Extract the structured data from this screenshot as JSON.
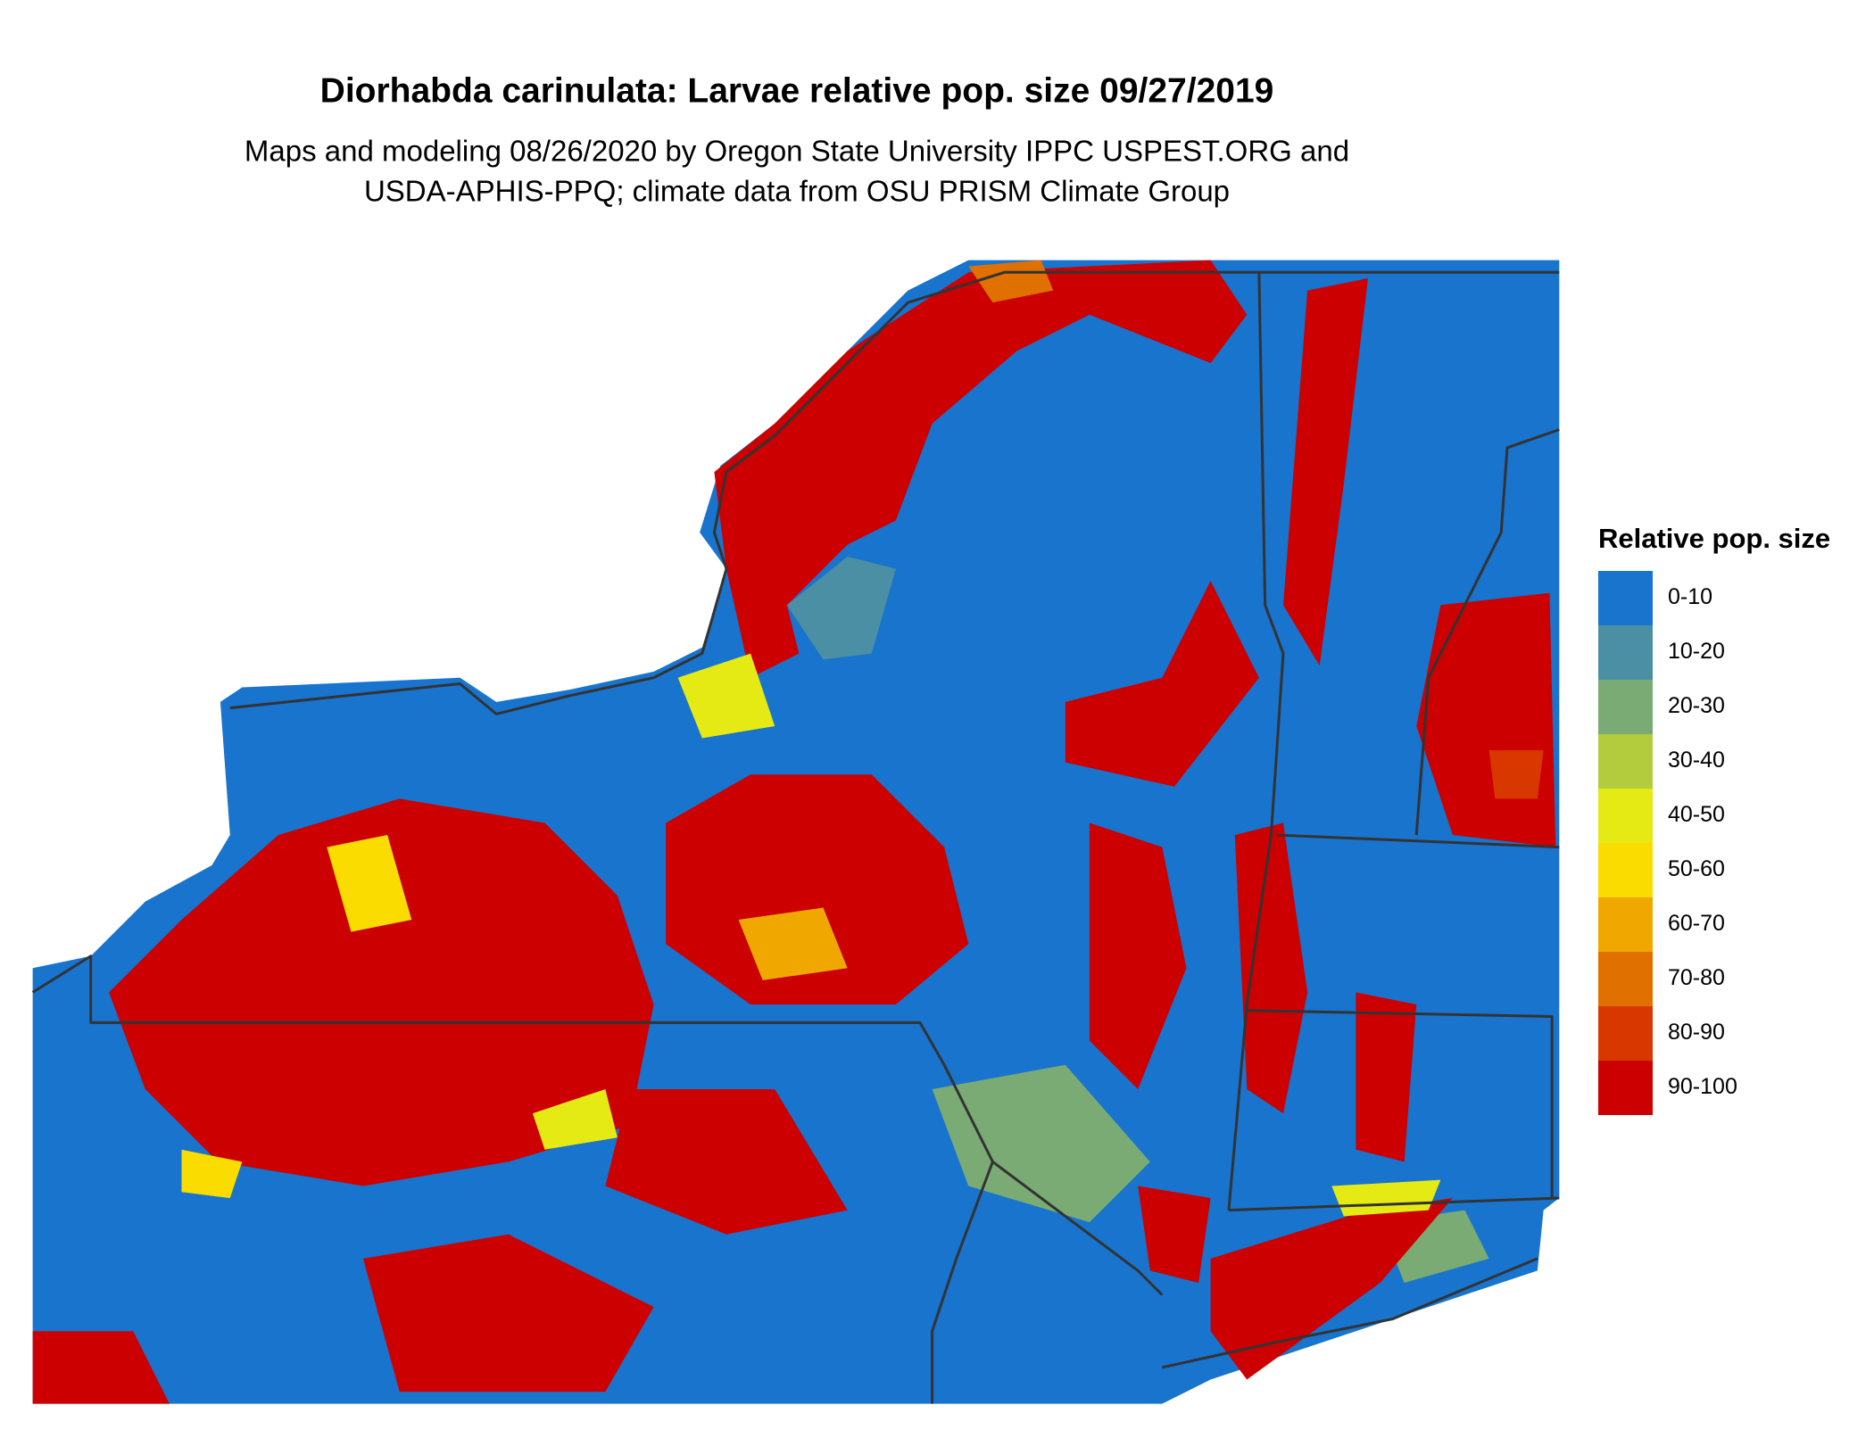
{
  "header": {
    "title": "Diorhabda carinulata: Larvae relative pop. size 09/27/2019",
    "subtitle": [
      "Maps and modeling 08/26/2020 by Oregon State University IPPC USPEST.ORG and",
      "USDA-APHIS-PPQ; climate data from OSU PRISM Climate Group"
    ]
  },
  "legend": {
    "title": "Relative pop. size",
    "items": [
      {
        "label": "0-10",
        "color": "#1874cd"
      },
      {
        "label": "10-20",
        "color": "#4a8fa3"
      },
      {
        "label": "20-30",
        "color": "#7bab74"
      },
      {
        "label": "30-40",
        "color": "#b2cc3e"
      },
      {
        "label": "40-50",
        "color": "#e5ea14"
      },
      {
        "label": "50-60",
        "color": "#fadc00"
      },
      {
        "label": "60-70",
        "color": "#f0a800"
      },
      {
        "label": "70-80",
        "color": "#e07000"
      },
      {
        "label": "80-90",
        "color": "#d83800"
      },
      {
        "label": "90-100",
        "color": "#cc0000"
      }
    ]
  }
}
